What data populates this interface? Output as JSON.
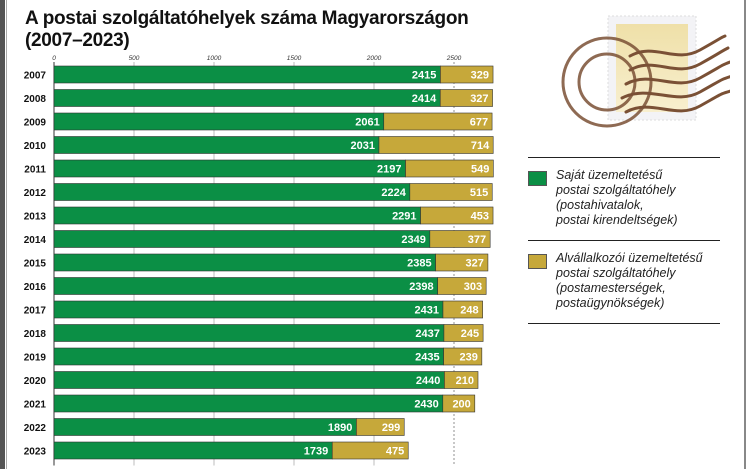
{
  "title_line1": "A postai szolgáltatóhelyek száma Magyarországon",
  "title_line2": "(2007–2023)",
  "chart_data": {
    "type": "bar",
    "orientation": "horizontal",
    "stacked": true,
    "categories": [
      "2007",
      "2008",
      "2009",
      "2010",
      "2011",
      "2012",
      "2013",
      "2014",
      "2015",
      "2016",
      "2017",
      "2018",
      "2019",
      "2020",
      "2021",
      "2022",
      "2023"
    ],
    "series": [
      {
        "name": "Saját üzemeltetésű postai szolgáltatóhely (postahivatalok, postai kirendeltségek)",
        "color": "#0b8f45",
        "values": [
          2415,
          2414,
          2061,
          2031,
          2197,
          2224,
          2291,
          2349,
          2385,
          2398,
          2431,
          2437,
          2435,
          2440,
          2430,
          1890,
          1739
        ]
      },
      {
        "name": "Alvállalkozói üzemeltetésű postai szolgáltatóhely (postamesterségek, postaügynökségek)",
        "color": "#c6a83a",
        "values": [
          329,
          327,
          677,
          714,
          549,
          515,
          453,
          377,
          327,
          303,
          248,
          245,
          239,
          210,
          200,
          299,
          475
        ]
      }
    ],
    "xticks": [
      0,
      500,
      1000,
      1500,
      2000,
      2500
    ],
    "xlim": [
      0,
      2750
    ],
    "legend_position": "right",
    "data_labels": true
  },
  "legend": {
    "items": [
      {
        "lines": [
          "Saját üzemeltetésű",
          "postai szolgáltatóhely",
          "(postahivatalok,",
          "postai kirendeltségek)"
        ],
        "color": "#0b8f45"
      },
      {
        "lines": [
          "Alvállalkozói üzemeltetésű",
          "postai szolgáltatóhely",
          "(postamesterségek,",
          "postaügynökségek)"
        ],
        "color": "#c6a83a"
      }
    ]
  },
  "illustration": "postage-stamp-icon"
}
